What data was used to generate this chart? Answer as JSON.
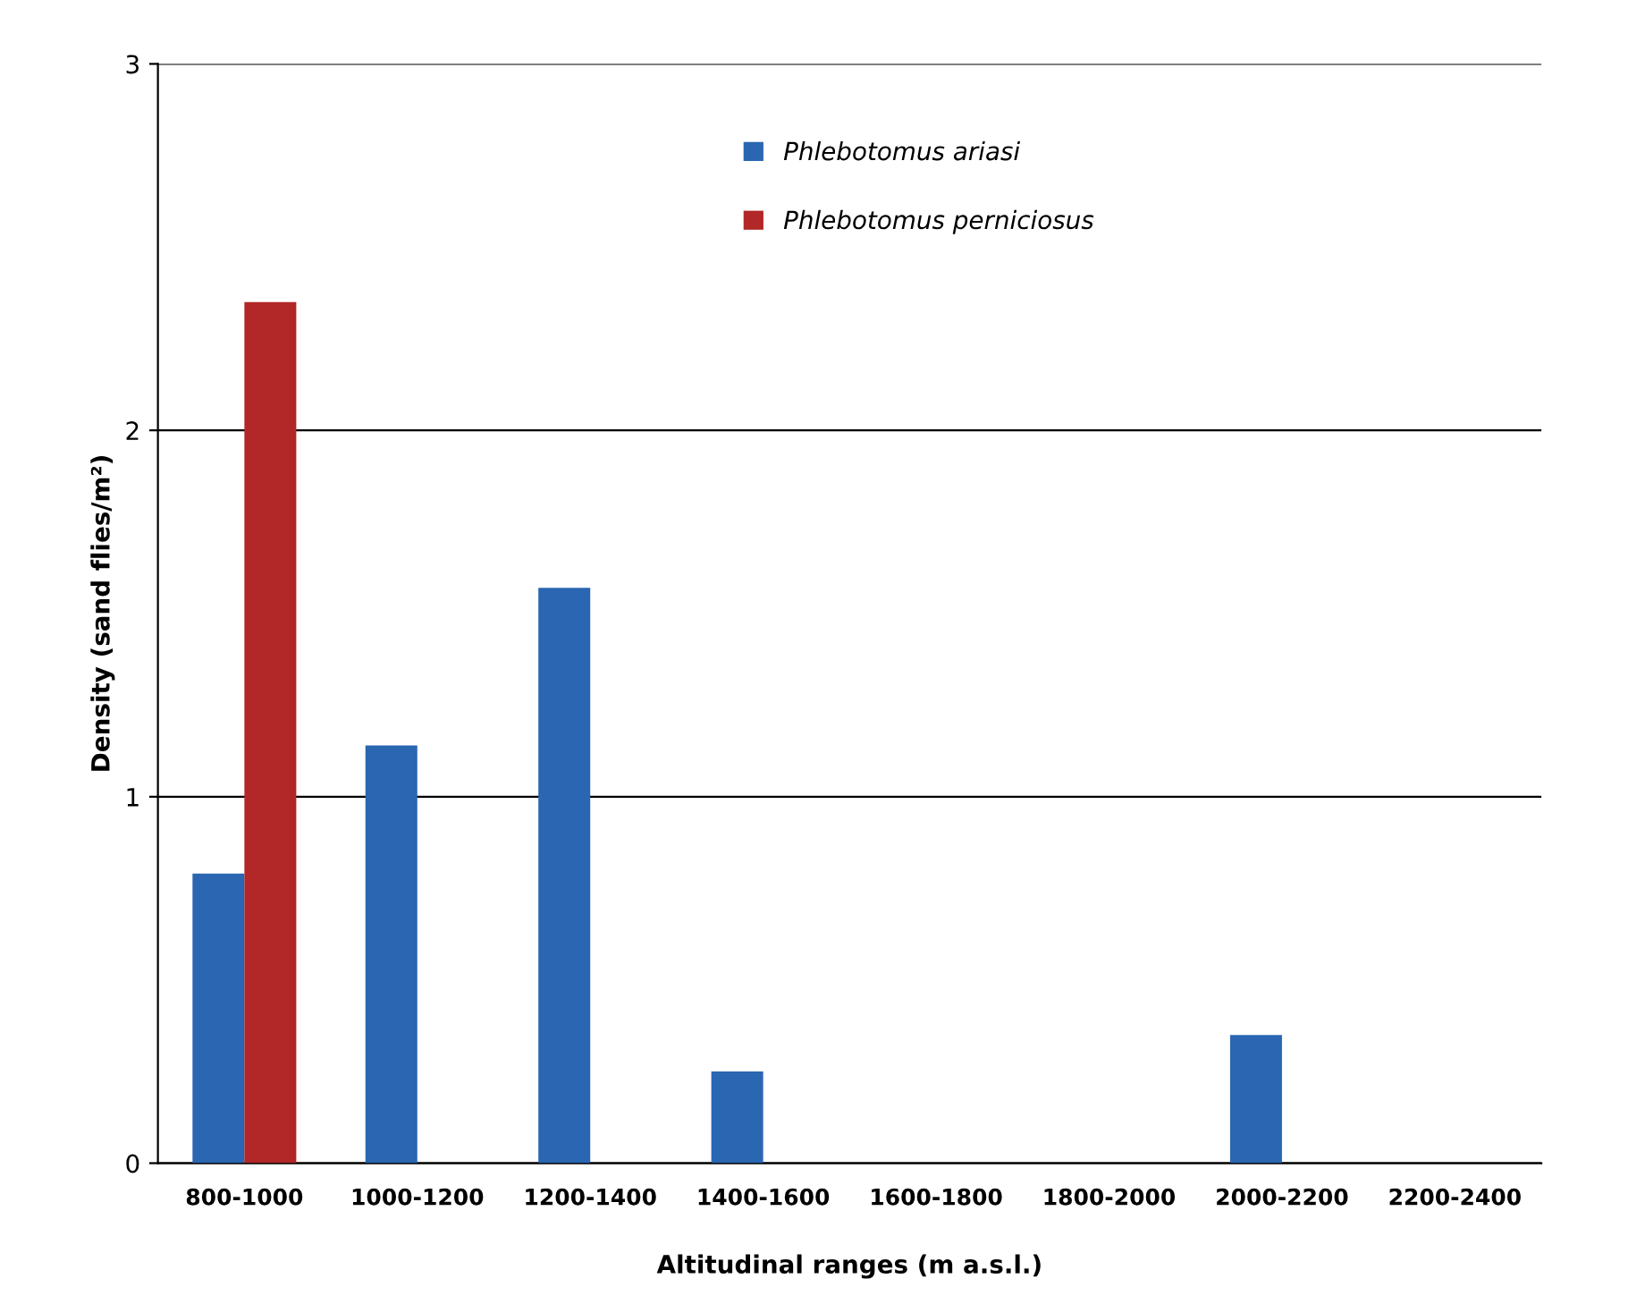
{
  "chart_data": {
    "type": "bar",
    "xlabel": "Altitudinal ranges (m a.s.l.)",
    "ylabel": "Density (sand flies/m²)",
    "categories": [
      "800-1000",
      "1000-1200",
      "1200-1400",
      "1400-1600",
      "1600-1800",
      "1800-2000",
      "2000-2200",
      "2200-2400"
    ],
    "series": [
      {
        "name": "Phlebotomus ariasi",
        "color": "#2a66b1",
        "values": [
          0.79,
          1.14,
          1.57,
          0.25,
          0,
          0,
          0.35,
          0
        ]
      },
      {
        "name": "Phlebotomus perniciosus",
        "color": "#b22727",
        "values": [
          2.35,
          0,
          0,
          0,
          0,
          0,
          0,
          0
        ]
      }
    ],
    "ylim": [
      0,
      3
    ],
    "yticks": [
      0,
      1,
      2,
      3
    ],
    "grid": "y",
    "legend": "top"
  }
}
